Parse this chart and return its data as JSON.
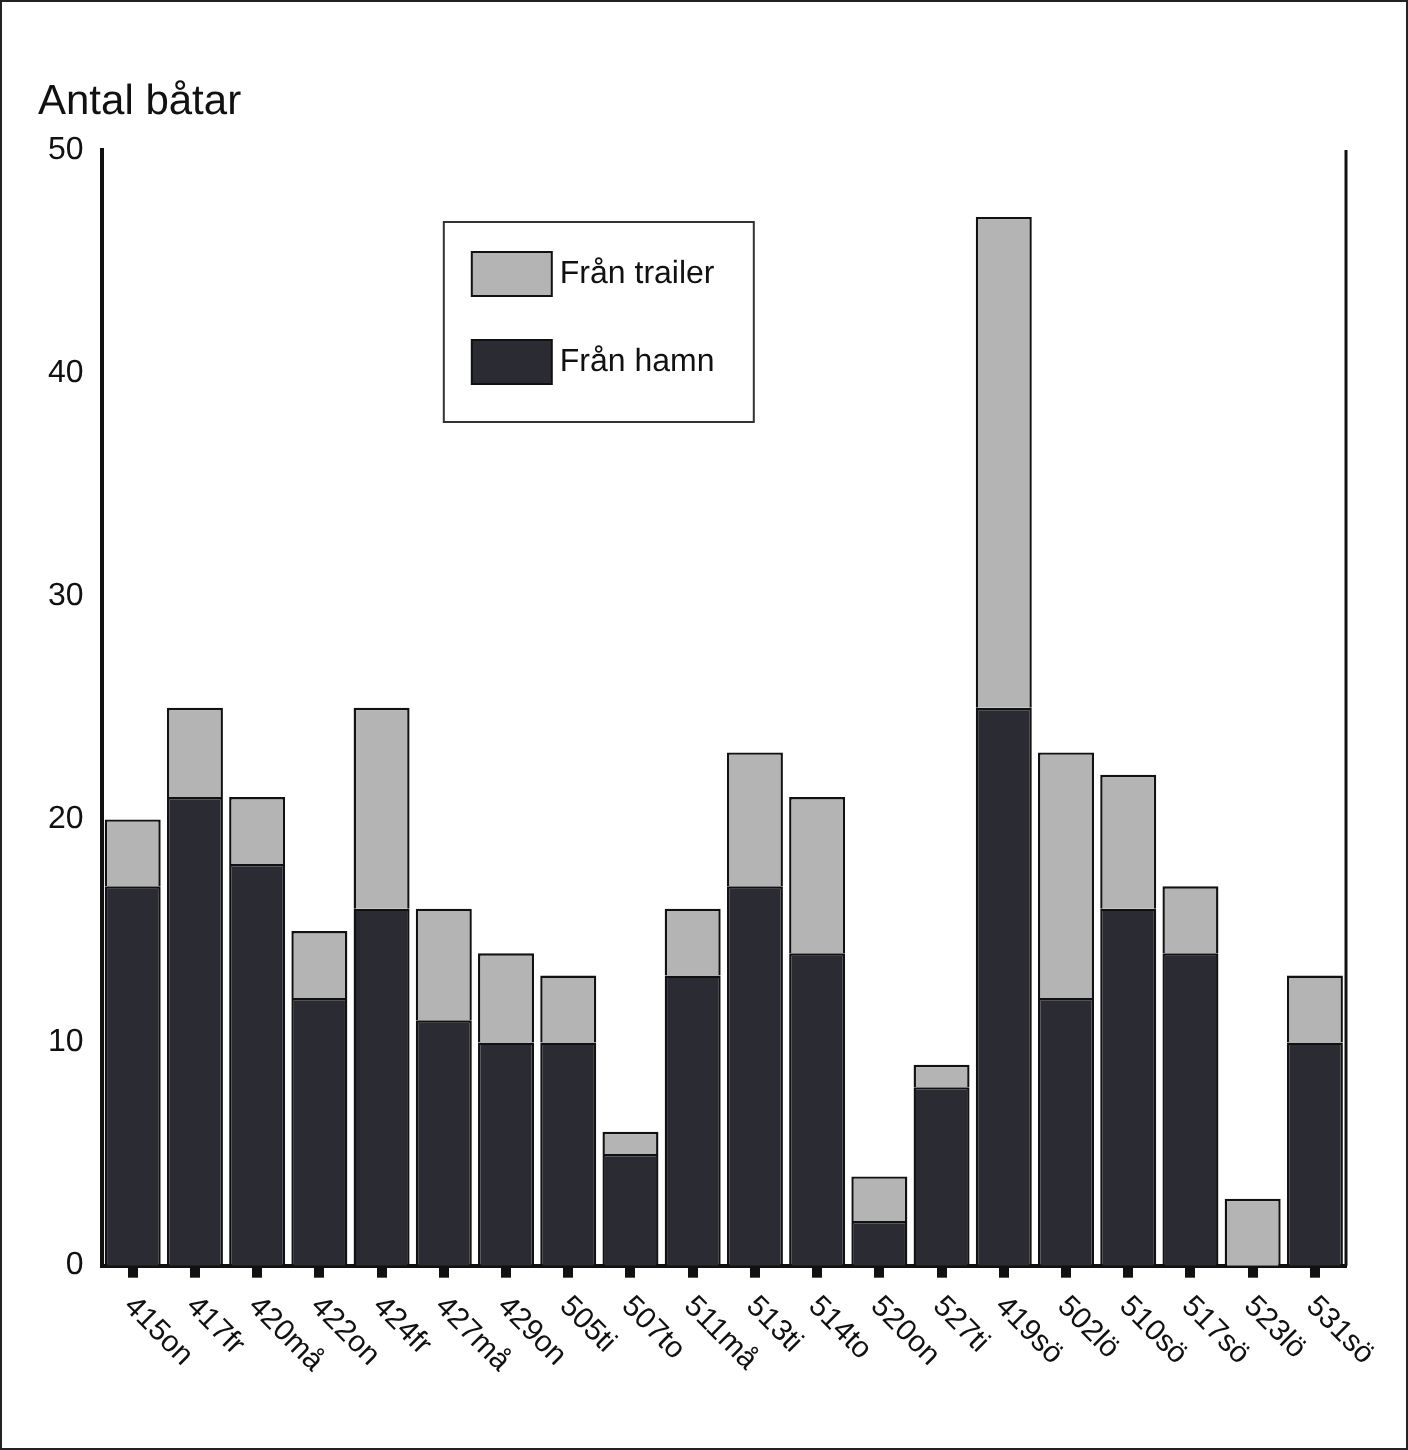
{
  "chart_data": {
    "type": "bar",
    "ylabel": "Antal båtar",
    "stacked": true,
    "categories": [
      "415on",
      "417fr",
      "420må",
      "422on",
      "424fr",
      "427må",
      "429on",
      "505ti",
      "507to",
      "511må",
      "513ti",
      "514to",
      "520on",
      "527ti",
      "419sö",
      "502lö",
      "510sö",
      "517sö",
      "523lö",
      "531sö"
    ],
    "series": [
      {
        "name": "Från hamn",
        "color": "#2b2b33",
        "values": [
          17,
          21,
          18,
          12,
          16,
          11,
          10,
          10,
          5,
          13,
          17,
          14,
          2,
          8,
          25,
          12,
          16,
          14,
          0,
          10
        ]
      },
      {
        "name": "Från trailer",
        "color": "#b4b4b4",
        "values": [
          3,
          4,
          3,
          3,
          9,
          5,
          4,
          3,
          1,
          3,
          6,
          7,
          2,
          1,
          22,
          11,
          6,
          3,
          3,
          3
        ]
      }
    ],
    "ylim": [
      0,
      50
    ],
    "yticks": [
      0,
      10,
      20,
      30,
      40,
      50
    ],
    "grid": false,
    "legend": "top"
  }
}
